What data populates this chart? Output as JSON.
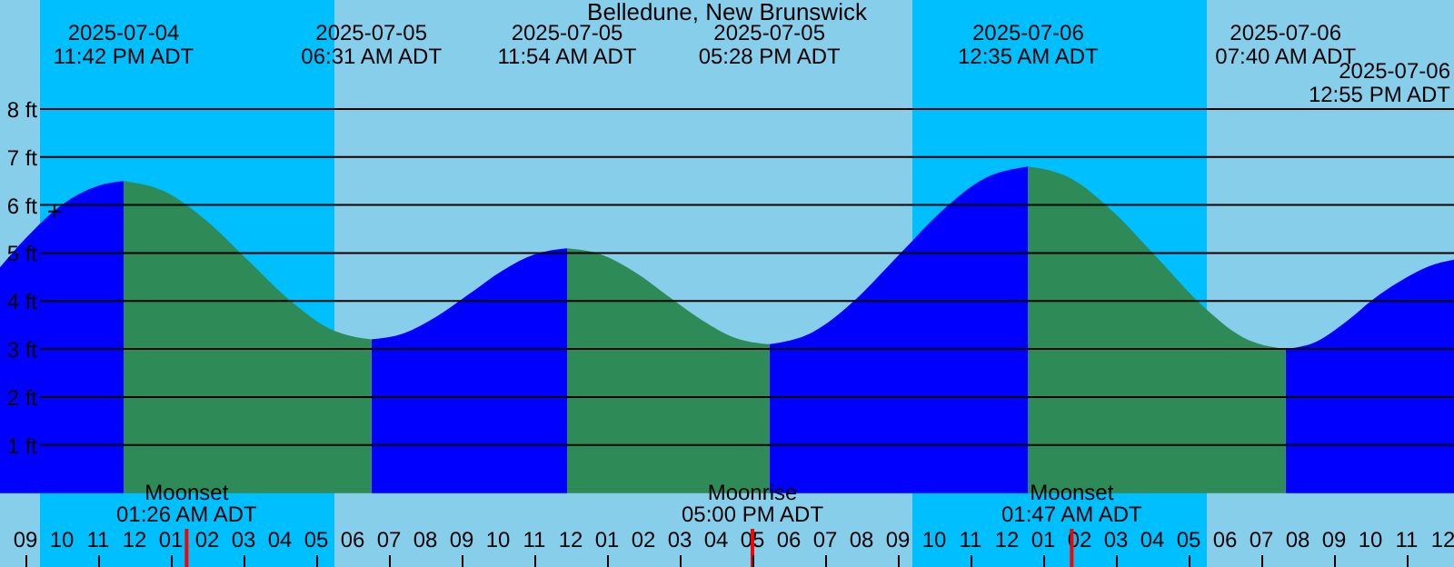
{
  "chart_data": {
    "type": "area",
    "title": "Belledune, New Brunswick",
    "x": [
      "2025-07-04T20:18",
      "2025-07-04T21:00",
      "2025-07-04T22:00",
      "2025-07-04T23:00",
      "2025-07-04T23:42",
      "2025-07-05T00:50",
      "2025-07-05T01:58",
      "2025-07-05T03:07",
      "2025-07-05T04:15",
      "2025-07-05T05:23",
      "2025-07-05T06:31",
      "2025-07-05T07:25",
      "2025-07-05T08:19",
      "2025-07-05T09:13",
      "2025-07-05T10:07",
      "2025-07-05T11:00",
      "2025-07-05T11:54",
      "2025-07-05T12:50",
      "2025-07-05T13:46",
      "2025-07-05T14:41",
      "2025-07-05T15:37",
      "2025-07-05T16:32",
      "2025-07-05T17:28",
      "2025-07-05T18:39",
      "2025-07-05T19:50",
      "2025-07-05T21:01",
      "2025-07-05T22:13",
      "2025-07-05T23:23",
      "2025-07-06T00:35",
      "2025-07-06T01:46",
      "2025-07-06T02:56",
      "2025-07-06T04:08",
      "2025-07-06T05:19",
      "2025-07-06T06:29",
      "2025-07-06T07:40",
      "2025-07-06T08:30",
      "2025-07-06T09:18",
      "2025-07-06T10:06",
      "2025-07-06T10:54",
      "2025-07-06T11:36",
      "2025-07-06T12:18"
    ],
    "series": [
      {
        "color": "#0000ff",
        "values": [
          4.7,
          5.3,
          6.0,
          6.4,
          6.5,
          null,
          null,
          null,
          null,
          null,
          3.2,
          3.33,
          3.68,
          4.15,
          4.63,
          4.97,
          5.1,
          null,
          null,
          null,
          null,
          null,
          3.1,
          3.35,
          4.03,
          4.95,
          5.88,
          6.55,
          6.8,
          null,
          null,
          null,
          null,
          null,
          3.0,
          3.15,
          3.55,
          4.05,
          4.45,
          4.72,
          4.86
        ]
      },
      {
        "color": "#2e8b57",
        "values": [
          null,
          null,
          null,
          null,
          6.5,
          6.28,
          5.68,
          4.85,
          4.03,
          3.42,
          3.2,
          null,
          null,
          null,
          null,
          null,
          5.1,
          4.97,
          4.6,
          4.1,
          3.6,
          3.23,
          3.1,
          null,
          null,
          null,
          null,
          null,
          6.8,
          6.55,
          5.85,
          4.9,
          3.95,
          3.25,
          3.0,
          null,
          null,
          null,
          null,
          null,
          null
        ]
      }
    ],
    "xlim": [
      "2025-07-04T20:18",
      "2025-07-06T12:18"
    ],
    "ylim": [
      -1.54,
      10.27
    ],
    "xticks": [
      {
        "value": "2025-07-04T21:00",
        "label": "09"
      },
      {
        "value": "2025-07-04T22:00",
        "label": "10"
      },
      {
        "value": "2025-07-04T23:00",
        "label": "11"
      },
      {
        "value": "2025-07-05T00:00",
        "label": "12"
      },
      {
        "value": "2025-07-05T01:00",
        "label": "01"
      },
      {
        "value": "2025-07-05T02:00",
        "label": "02"
      },
      {
        "value": "2025-07-05T03:00",
        "label": "03"
      },
      {
        "value": "2025-07-05T04:00",
        "label": "04"
      },
      {
        "value": "2025-07-05T05:00",
        "label": "05"
      },
      {
        "value": "2025-07-05T06:00",
        "label": "06"
      },
      {
        "value": "2025-07-05T07:00",
        "label": "07"
      },
      {
        "value": "2025-07-05T08:00",
        "label": "08"
      },
      {
        "value": "2025-07-05T09:00",
        "label": "09"
      },
      {
        "value": "2025-07-05T10:00",
        "label": "10"
      },
      {
        "value": "2025-07-05T11:00",
        "label": "11"
      },
      {
        "value": "2025-07-05T12:00",
        "label": "12"
      },
      {
        "value": "2025-07-05T13:00",
        "label": "01"
      },
      {
        "value": "2025-07-05T14:00",
        "label": "02"
      },
      {
        "value": "2025-07-05T15:00",
        "label": "03"
      },
      {
        "value": "2025-07-05T16:00",
        "label": "04"
      },
      {
        "value": "2025-07-05T17:00",
        "label": "05"
      },
      {
        "value": "2025-07-05T18:00",
        "label": "06"
      },
      {
        "value": "2025-07-05T19:00",
        "label": "07"
      },
      {
        "value": "2025-07-05T20:00",
        "label": "08"
      },
      {
        "value": "2025-07-05T21:00",
        "label": "09"
      },
      {
        "value": "2025-07-05T22:00",
        "label": "10"
      },
      {
        "value": "2025-07-05T23:00",
        "label": "11"
      },
      {
        "value": "2025-07-06T00:00",
        "label": "12"
      },
      {
        "value": "2025-07-06T01:00",
        "label": "01"
      },
      {
        "value": "2025-07-06T02:00",
        "label": "02"
      },
      {
        "value": "2025-07-06T03:00",
        "label": "03"
      },
      {
        "value": "2025-07-06T04:00",
        "label": "04"
      },
      {
        "value": "2025-07-06T05:00",
        "label": "05"
      },
      {
        "value": "2025-07-06T06:00",
        "label": "06"
      },
      {
        "value": "2025-07-06T07:00",
        "label": "07"
      },
      {
        "value": "2025-07-06T08:00",
        "label": "08"
      },
      {
        "value": "2025-07-06T09:00",
        "label": "09"
      },
      {
        "value": "2025-07-06T10:00",
        "label": "10"
      },
      {
        "value": "2025-07-06T11:00",
        "label": "11"
      },
      {
        "value": "2025-07-06T12:00",
        "label": "12"
      }
    ],
    "yticks": [
      {
        "value": 1,
        "label": "1 ft"
      },
      {
        "value": 2,
        "label": "2 ft"
      },
      {
        "value": 3,
        "label": "3 ft"
      },
      {
        "value": 4,
        "label": "4 ft"
      },
      {
        "value": 5,
        "label": "5 ft"
      },
      {
        "value": 6,
        "label": "6 ft"
      },
      {
        "value": 7,
        "label": "7 ft"
      },
      {
        "value": 8,
        "label": "8 ft"
      }
    ],
    "grid": "y",
    "bands": [
      {
        "axis": "x",
        "from": "2025-07-04T21:24",
        "to": "2025-07-05T05:30",
        "color": "#00bfff"
      },
      {
        "axis": "x",
        "from": "2025-07-05T21:24",
        "to": "2025-07-06T05:30",
        "color": "#00bfff"
      }
    ],
    "ref_lines": [
      {
        "axis": "x",
        "value": "2025-07-05T01:26",
        "label": "Moonset\n01:26 AM ADT",
        "color": "#ff0000"
      },
      {
        "axis": "x",
        "value": "2025-07-05T17:00",
        "label": "Moonrise\n05:00 PM ADT",
        "color": "#ff0000"
      },
      {
        "axis": "x",
        "value": "2025-07-06T01:47",
        "label": "Moonset\n01:47 AM ADT",
        "color": "#ff0000"
      }
    ],
    "annotations": [
      "2025-07-04\n11:42 PM ADT",
      "2025-07-05\n06:31 AM ADT",
      "2025-07-05\n11:54 AM ADT",
      "2025-07-05\n05:28 PM ADT",
      "2025-07-06\n12:35 AM ADT",
      "2025-07-06\n07:40 AM ADT",
      "2025-07-06\n12:55 PM ADT",
      {
        "text": "+",
        "x": "2025-07-04T21:48",
        "y": 5.84
      }
    ]
  }
}
